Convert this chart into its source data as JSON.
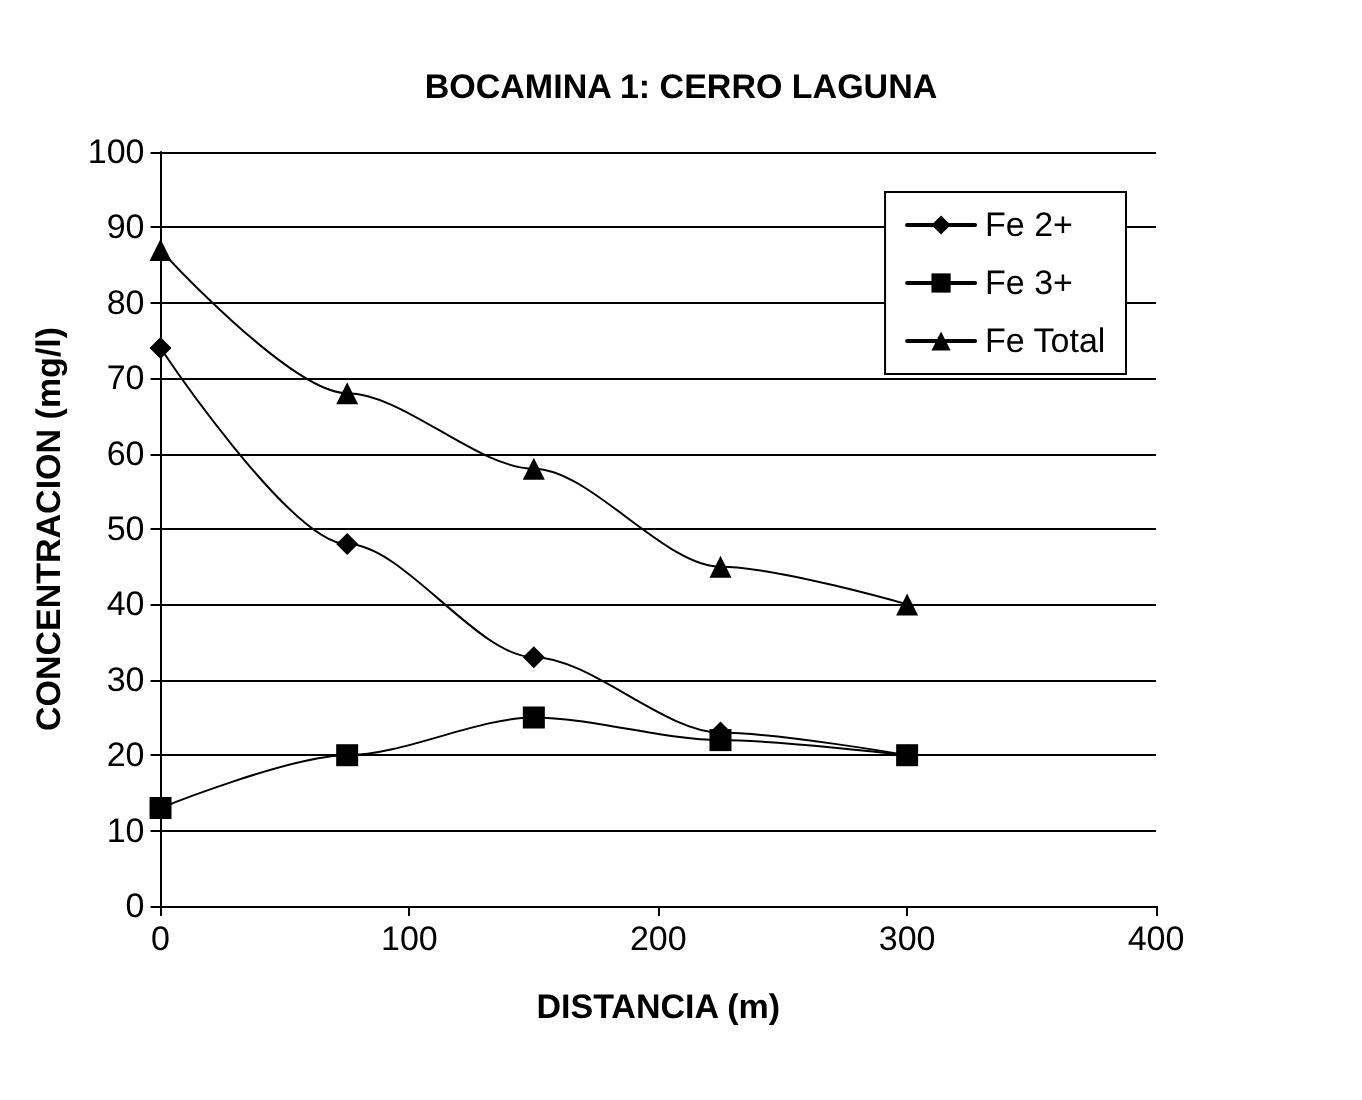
{
  "chart_data": {
    "type": "line",
    "title": "BOCAMINA 1: CERRO LAGUNA",
    "xlabel": "DISTANCIA (m)",
    "ylabel": "CONCENTRACION (mg/l)",
    "x": [
      0,
      75,
      150,
      225,
      300
    ],
    "series": [
      {
        "name": "Fe 2+",
        "color": "#000000",
        "marker": "diamond",
        "values": [
          74,
          48,
          33,
          23,
          20
        ]
      },
      {
        "name": "Fe 3+",
        "color": "#000000",
        "marker": "square",
        "values": [
          13,
          20,
          25,
          22,
          20
        ]
      },
      {
        "name": "Fe Total",
        "color": "#000000",
        "marker": "triangle",
        "values": [
          87,
          68,
          58,
          45,
          40
        ]
      }
    ],
    "xlim": [
      0,
      400
    ],
    "xticks": [
      0,
      100,
      200,
      300,
      400
    ],
    "ylim": [
      0,
      100
    ],
    "yticks": [
      0,
      10,
      20,
      30,
      40,
      50,
      60,
      70,
      80,
      90,
      100
    ],
    "grid": "y",
    "legend": "top right",
    "line_style": "solid"
  }
}
